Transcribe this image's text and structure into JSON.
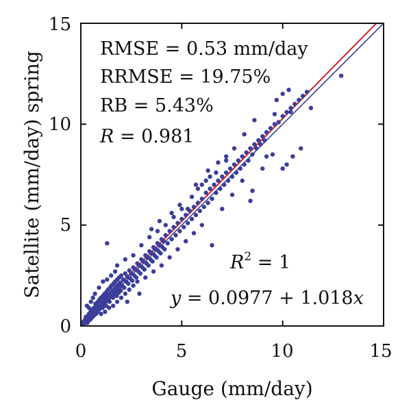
{
  "chart_data": {
    "type": "scatter",
    "xlabel": "Gauge (mm/day)",
    "ylabel": "Satellite (mm/day) spring",
    "xlim": [
      0,
      15
    ],
    "ylim": [
      0,
      15
    ],
    "x_ticks": [
      0,
      5,
      10,
      15
    ],
    "y_ticks": [
      0,
      5,
      10,
      15
    ],
    "grid": false,
    "stats": {
      "rmse": "RMSE = 0.53 mm/day",
      "rrmse": "RRMSE = 19.75%",
      "rb": "RB = 5.43%",
      "r_symbol": "R",
      "r_value": " = 0.981"
    },
    "fit": {
      "r2_symbol": "R",
      "r2_exp": "2",
      "r2_value": " = 1",
      "eq_y": "y",
      "eq_mid": " = 0.0977 + 1.018",
      "eq_x": "x"
    },
    "lines": [
      {
        "kind": "one_to_one",
        "intercept": 0,
        "slope": 1,
        "color": "#3a3fa0"
      },
      {
        "kind": "regression",
        "intercept": 0.0977,
        "slope": 1.018,
        "color": "#d0202a"
      }
    ],
    "point_color": "#3b3f9a",
    "points": [
      [
        0.05,
        0.1
      ],
      [
        0.1,
        0.05
      ],
      [
        0.12,
        0.2
      ],
      [
        0.15,
        0.12
      ],
      [
        0.2,
        0.3
      ],
      [
        0.22,
        0.18
      ],
      [
        0.25,
        0.45
      ],
      [
        0.28,
        0.22
      ],
      [
        0.3,
        0.35
      ],
      [
        0.32,
        0.15
      ],
      [
        0.35,
        0.5
      ],
      [
        0.38,
        0.3
      ],
      [
        0.4,
        0.6
      ],
      [
        0.42,
        0.28
      ],
      [
        0.45,
        0.4
      ],
      [
        0.48,
        0.7
      ],
      [
        0.5,
        0.35
      ],
      [
        0.52,
        0.55
      ],
      [
        0.55,
        0.8
      ],
      [
        0.58,
        0.45
      ],
      [
        0.6,
        0.65
      ],
      [
        0.62,
        0.5
      ],
      [
        0.65,
        0.9
      ],
      [
        0.68,
        0.55
      ],
      [
        0.7,
        0.75
      ],
      [
        0.72,
        1.1
      ],
      [
        0.75,
        0.6
      ],
      [
        0.78,
        0.85
      ],
      [
        0.8,
        1.0
      ],
      [
        0.82,
        0.7
      ],
      [
        0.85,
        1.2
      ],
      [
        0.88,
        0.8
      ],
      [
        0.9,
        0.95
      ],
      [
        0.92,
        1.3
      ],
      [
        0.95,
        0.85
      ],
      [
        0.98,
        1.1
      ],
      [
        1.0,
        1.4
      ],
      [
        1.02,
        0.95
      ],
      [
        1.05,
        1.2
      ],
      [
        1.08,
        0.9
      ],
      [
        1.1,
        1.5
      ],
      [
        1.12,
        1.05
      ],
      [
        1.15,
        1.3
      ],
      [
        1.18,
        1.6
      ],
      [
        1.2,
        1.1
      ],
      [
        1.22,
        1.4
      ],
      [
        1.25,
        1.0
      ],
      [
        1.28,
        1.7
      ],
      [
        1.3,
        1.25
      ],
      [
        1.32,
        1.5
      ],
      [
        1.35,
        1.8
      ],
      [
        1.38,
        1.3
      ],
      [
        1.4,
        1.55
      ],
      [
        1.42,
        1.2
      ],
      [
        1.45,
        1.9
      ],
      [
        1.48,
        1.45
      ],
      [
        1.5,
        1.65
      ],
      [
        1.52,
        2.0
      ],
      [
        1.55,
        1.5
      ],
      [
        1.58,
        1.75
      ],
      [
        1.6,
        1.4
      ],
      [
        1.62,
        2.1
      ],
      [
        1.65,
        1.6
      ],
      [
        1.68,
        1.85
      ],
      [
        1.7,
        2.2
      ],
      [
        1.72,
        1.7
      ],
      [
        1.75,
        1.95
      ],
      [
        1.78,
        1.5
      ],
      [
        1.8,
        2.3
      ],
      [
        1.82,
        1.8
      ],
      [
        1.85,
        2.05
      ],
      [
        1.88,
        1.65
      ],
      [
        1.9,
        2.4
      ],
      [
        1.92,
        1.9
      ],
      [
        1.95,
        2.15
      ],
      [
        1.98,
        1.75
      ],
      [
        2.0,
        2.5
      ],
      [
        2.05,
        2.0
      ],
      [
        2.1,
        2.3
      ],
      [
        2.15,
        1.9
      ],
      [
        2.2,
        2.6
      ],
      [
        2.25,
        2.2
      ],
      [
        2.3,
        2.45
      ],
      [
        2.35,
        2.1
      ],
      [
        2.4,
        2.75
      ],
      [
        2.45,
        2.35
      ],
      [
        2.5,
        2.6
      ],
      [
        2.55,
        2.25
      ],
      [
        2.6,
        2.9
      ],
      [
        2.65,
        2.5
      ],
      [
        2.7,
        2.8
      ],
      [
        2.75,
        2.4
      ],
      [
        2.8,
        3.1
      ],
      [
        2.85,
        2.7
      ],
      [
        2.9,
        3.0
      ],
      [
        2.95,
        2.6
      ],
      [
        3.0,
        3.3
      ],
      [
        3.05,
        2.9
      ],
      [
        3.1,
        3.2
      ],
      [
        3.15,
        2.8
      ],
      [
        3.2,
        3.5
      ],
      [
        3.25,
        3.1
      ],
      [
        3.3,
        3.4
      ],
      [
        3.35,
        3.0
      ],
      [
        3.4,
        3.7
      ],
      [
        3.45,
        3.3
      ],
      [
        3.5,
        3.6
      ],
      [
        3.55,
        3.2
      ],
      [
        3.6,
        3.9
      ],
      [
        3.65,
        3.5
      ],
      [
        3.7,
        3.8
      ],
      [
        3.75,
        3.4
      ],
      [
        3.8,
        4.1
      ],
      [
        3.85,
        3.7
      ],
      [
        3.9,
        4.0
      ],
      [
        3.95,
        3.6
      ],
      [
        4.0,
        4.3
      ],
      [
        4.05,
        3.9
      ],
      [
        4.1,
        4.2
      ],
      [
        4.15,
        3.8
      ],
      [
        4.2,
        4.5
      ],
      [
        4.3,
        4.1
      ],
      [
        4.4,
        4.7
      ],
      [
        4.5,
        4.3
      ],
      [
        4.6,
        4.9
      ],
      [
        4.7,
        4.5
      ],
      [
        4.8,
        5.1
      ],
      [
        4.9,
        4.7
      ],
      [
        5.0,
        5.3
      ],
      [
        5.1,
        4.9
      ],
      [
        5.2,
        5.5
      ],
      [
        5.3,
        5.1
      ],
      [
        5.4,
        5.7
      ],
      [
        5.5,
        5.3
      ],
      [
        5.6,
        5.9
      ],
      [
        5.7,
        5.5
      ],
      [
        5.8,
        6.1
      ],
      [
        5.9,
        5.7
      ],
      [
        6.0,
        6.3
      ],
      [
        6.1,
        5.9
      ],
      [
        6.2,
        6.6
      ],
      [
        6.3,
        6.1
      ],
      [
        6.4,
        6.8
      ],
      [
        6.5,
        6.3
      ],
      [
        6.6,
        7.0
      ],
      [
        6.7,
        6.6
      ],
      [
        6.8,
        7.2
      ],
      [
        6.9,
        6.8
      ],
      [
        7.0,
        7.4
      ],
      [
        7.1,
        7.0
      ],
      [
        7.2,
        7.6
      ],
      [
        7.3,
        7.2
      ],
      [
        7.4,
        7.8
      ],
      [
        7.5,
        7.4
      ],
      [
        7.6,
        8.0
      ],
      [
        7.7,
        7.6
      ],
      [
        7.8,
        8.2
      ],
      [
        7.9,
        7.8
      ],
      [
        8.0,
        8.4
      ],
      [
        8.1,
        8.0
      ],
      [
        8.2,
        8.6
      ],
      [
        8.3,
        8.2
      ],
      [
        8.4,
        8.8
      ],
      [
        8.5,
        8.5
      ],
      [
        8.6,
        9.0
      ],
      [
        8.7,
        8.8
      ],
      [
        8.8,
        9.2
      ],
      [
        8.9,
        9.0
      ],
      [
        9.0,
        9.4
      ],
      [
        9.1,
        9.2
      ],
      [
        9.2,
        9.6
      ],
      [
        9.4,
        9.8
      ],
      [
        9.6,
        10.0
      ],
      [
        9.8,
        10.1
      ],
      [
        10.0,
        10.4
      ],
      [
        10.2,
        10.6
      ],
      [
        10.4,
        10.8
      ],
      [
        10.6,
        11.0
      ],
      [
        10.8,
        11.2
      ],
      [
        11.0,
        11.4
      ],
      [
        0.3,
        1.0
      ],
      [
        0.5,
        1.2
      ],
      [
        0.7,
        1.6
      ],
      [
        0.9,
        1.9
      ],
      [
        1.1,
        2.2
      ],
      [
        0.4,
        0.9
      ],
      [
        0.6,
        1.4
      ],
      [
        1.3,
        2.3
      ],
      [
        1.5,
        2.5
      ],
      [
        1.7,
        2.7
      ],
      [
        1.0,
        0.6
      ],
      [
        1.2,
        0.7
      ],
      [
        1.4,
        0.9
      ],
      [
        1.6,
        1.0
      ],
      [
        1.8,
        1.2
      ],
      [
        2.0,
        1.4
      ],
      [
        2.2,
        1.6
      ],
      [
        2.4,
        1.8
      ],
      [
        2.6,
        2.0
      ],
      [
        2.8,
        2.2
      ],
      [
        1.3,
        4.1
      ],
      [
        1.8,
        3.0
      ],
      [
        2.2,
        3.3
      ],
      [
        2.6,
        3.5
      ],
      [
        3.0,
        4.0
      ],
      [
        3.4,
        4.4
      ],
      [
        3.8,
        4.7
      ],
      [
        4.2,
        5.0
      ],
      [
        4.6,
        5.4
      ],
      [
        5.0,
        5.8
      ],
      [
        2.3,
        1.2
      ],
      [
        2.9,
        1.6
      ],
      [
        3.2,
        2.4
      ],
      [
        3.6,
        2.7
      ],
      [
        4.0,
        3.0
      ],
      [
        4.4,
        3.4
      ],
      [
        4.8,
        3.8
      ],
      [
        5.2,
        4.2
      ],
      [
        5.6,
        4.6
      ],
      [
        6.0,
        5.0
      ],
      [
        6.5,
        4.0
      ],
      [
        7.0,
        5.8
      ],
      [
        7.5,
        6.5
      ],
      [
        8.0,
        7.2
      ],
      [
        8.5,
        6.7
      ],
      [
        9.0,
        7.8
      ],
      [
        9.2,
        8.4
      ],
      [
        9.5,
        8.5
      ],
      [
        10.0,
        7.8
      ],
      [
        10.2,
        8.0
      ],
      [
        10.9,
        8.8
      ],
      [
        10.5,
        8.4
      ],
      [
        8.4,
        6.2
      ],
      [
        7.2,
        8.2
      ],
      [
        7.6,
        8.8
      ],
      [
        8.1,
        9.5
      ],
      [
        8.6,
        10.2
      ],
      [
        9.6,
        10.5
      ],
      [
        10.0,
        11.5
      ],
      [
        10.3,
        11.7
      ],
      [
        11.2,
        11.6
      ],
      [
        11.4,
        10.8
      ],
      [
        12.9,
        12.4
      ],
      [
        10.4,
        10.6
      ],
      [
        9.7,
        11.2
      ],
      [
        6.0,
        7.0
      ],
      [
        6.3,
        7.7
      ],
      [
        5.7,
        7.0
      ],
      [
        6.8,
        8.1
      ],
      [
        7.2,
        8.4
      ],
      [
        5.5,
        6.4
      ],
      [
        5.8,
        6.8
      ],
      [
        6.2,
        7.2
      ],
      [
        6.4,
        7.4
      ],
      [
        6.7,
        7.6
      ],
      [
        4.5,
        5.6
      ],
      [
        4.9,
        6.0
      ],
      [
        5.3,
        5.8
      ],
      [
        3.5,
        4.8
      ],
      [
        3.9,
        5.2
      ]
    ]
  }
}
